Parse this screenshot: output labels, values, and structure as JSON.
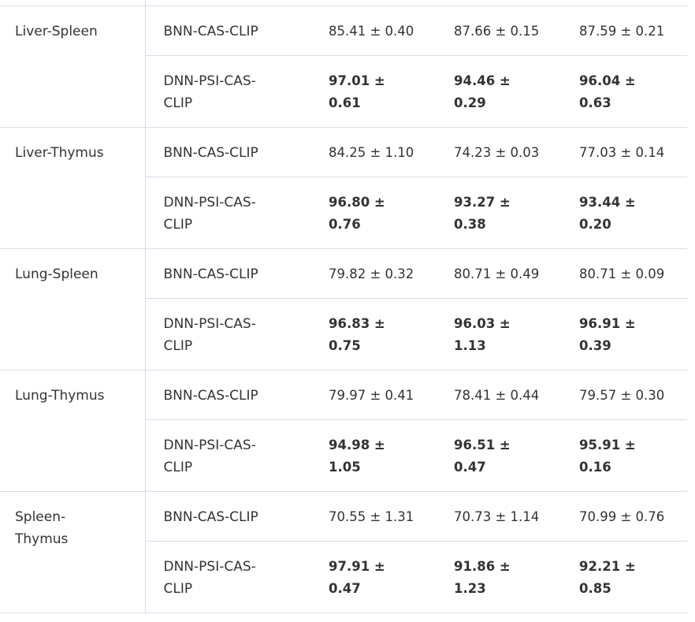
{
  "table": {
    "rows": [
      {
        "group": "Liver-Spleen",
        "bnn": {
          "method": "BNN-CAS-CLIP",
          "values": [
            "85.41 ± 0.40",
            "87.66 ± 0.15",
            "87.59 ± 0.21"
          ]
        },
        "dnn": {
          "method": "DNN-PSI-CAS-CLIP",
          "values": [
            "97.01 ± 0.61",
            "94.46 ± 0.29",
            "96.04 ± 0.63"
          ]
        }
      },
      {
        "group": "Liver-Thymus",
        "bnn": {
          "method": "BNN-CAS-CLIP",
          "values": [
            "84.25 ± 1.10",
            "74.23 ± 0.03",
            "77.03 ± 0.14"
          ]
        },
        "dnn": {
          "method": "DNN-PSI-CAS-CLIP",
          "values": [
            "96.80 ± 0.76",
            "93.27 ± 0.38",
            "93.44 ± 0.20"
          ]
        }
      },
      {
        "group": "Lung-Spleen",
        "bnn": {
          "method": "BNN-CAS-CLIP",
          "values": [
            "79.82 ± 0.32",
            "80.71 ± 0.49",
            "80.71 ± 0.09"
          ]
        },
        "dnn": {
          "method": "DNN-PSI-CAS-CLIP",
          "values": [
            "96.83 ± 0.75",
            "96.03 ± 1.13",
            "96.91 ± 0.39"
          ]
        }
      },
      {
        "group": "Lung-Thymus",
        "bnn": {
          "method": "BNN-CAS-CLIP",
          "values": [
            "79.97 ± 0.41",
            "78.41 ± 0.44",
            "79.57 ± 0.30"
          ]
        },
        "dnn": {
          "method": "DNN-PSI-CAS-CLIP",
          "values": [
            "94.98 ± 1.05",
            "96.51 ± 0.47",
            "95.91 ± 0.16"
          ]
        }
      },
      {
        "group": "Spleen-Thymus",
        "bnn": {
          "method": "BNN-CAS-CLIP",
          "values": [
            "70.55 ± 1.31",
            "70.73 ± 1.14",
            "70.99 ± 0.76"
          ]
        },
        "dnn": {
          "method": "DNN-PSI-CAS-CLIP",
          "values": [
            "97.91 ± 0.47",
            "91.86 ± 1.23",
            "92.21 ± 0.85"
          ]
        }
      }
    ]
  }
}
